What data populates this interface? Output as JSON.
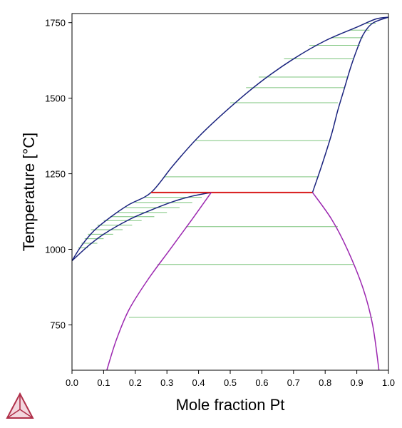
{
  "chart_data": {
    "type": "line",
    "title": "",
    "xlabel": "Mole fraction Pt",
    "ylabel": "Temperature [°C]",
    "xlim": [
      0,
      1
    ],
    "ylim": [
      600,
      1780
    ],
    "x_ticks": [
      "0.0",
      "0.1",
      "0.2",
      "0.3",
      "0.4",
      "0.5",
      "0.6",
      "0.7",
      "0.8",
      "0.9",
      "1.0"
    ],
    "y_ticks": [
      "750",
      "1000",
      "1250",
      "1500",
      "1750"
    ],
    "grid": false,
    "legend": "none",
    "series": [
      {
        "color": "#1a237e",
        "points": [
          [
            0,
            962
          ],
          [
            0.03,
            1012
          ],
          [
            0.07,
            1062
          ],
          [
            0.12,
            1105
          ],
          [
            0.18,
            1148
          ],
          [
            0.25,
            1188
          ],
          [
            0.32,
            1278
          ],
          [
            0.4,
            1372
          ],
          [
            0.5,
            1470
          ],
          [
            0.6,
            1557
          ],
          [
            0.7,
            1630
          ],
          [
            0.8,
            1690
          ],
          [
            0.9,
            1735
          ],
          [
            0.96,
            1762
          ],
          [
            1.0,
            1768
          ]
        ]
      },
      {
        "color": "#1a237e",
        "points": [
          [
            0,
            962
          ],
          [
            0.05,
            1010
          ],
          [
            0.1,
            1050
          ],
          [
            0.18,
            1098
          ],
          [
            0.25,
            1130
          ],
          [
            0.32,
            1158
          ],
          [
            0.38,
            1176
          ],
          [
            0.44,
            1188
          ]
        ]
      },
      {
        "color": "#1a237e",
        "points": [
          [
            0.76,
            1188
          ],
          [
            0.79,
            1280
          ],
          [
            0.82,
            1380
          ],
          [
            0.84,
            1460
          ],
          [
            0.86,
            1530
          ],
          [
            0.88,
            1600
          ],
          [
            0.9,
            1660
          ],
          [
            0.92,
            1710
          ],
          [
            0.95,
            1748
          ],
          [
            1.0,
            1768
          ]
        ]
      },
      {
        "color": "#d81b1b",
        "points": [
          [
            0.25,
            1188
          ],
          [
            0.76,
            1188
          ]
        ]
      },
      {
        "color": "#9c27b0",
        "points": [
          [
            0.44,
            1188
          ],
          [
            0.38,
            1100
          ],
          [
            0.31,
            1000
          ],
          [
            0.24,
            900
          ],
          [
            0.18,
            800
          ],
          [
            0.14,
            700
          ],
          [
            0.11,
            600
          ]
        ]
      },
      {
        "color": "#9c27b0",
        "points": [
          [
            0.76,
            1188
          ],
          [
            0.82,
            1100
          ],
          [
            0.87,
            1000
          ],
          [
            0.92,
            870
          ],
          [
            0.95,
            750
          ],
          [
            0.97,
            600
          ]
        ]
      }
    ],
    "tie_lines": {
      "color": "#7cc47c",
      "segments": [
        [
          [
            0.02,
            1005
          ],
          [
            0.05,
            1005
          ]
        ],
        [
          [
            0.03,
            1020
          ],
          [
            0.08,
            1020
          ]
        ],
        [
          [
            0.04,
            1035
          ],
          [
            0.1,
            1035
          ]
        ],
        [
          [
            0.05,
            1050
          ],
          [
            0.13,
            1050
          ]
        ],
        [
          [
            0.06,
            1065
          ],
          [
            0.16,
            1065
          ]
        ],
        [
          [
            0.08,
            1080
          ],
          [
            0.19,
            1080
          ]
        ],
        [
          [
            0.1,
            1095
          ],
          [
            0.22,
            1095
          ]
        ],
        [
          [
            0.12,
            1108
          ],
          [
            0.26,
            1108
          ]
        ],
        [
          [
            0.14,
            1122
          ],
          [
            0.3,
            1122
          ]
        ],
        [
          [
            0.17,
            1138
          ],
          [
            0.34,
            1138
          ]
        ],
        [
          [
            0.2,
            1155
          ],
          [
            0.38,
            1155
          ]
        ],
        [
          [
            0.23,
            1172
          ],
          [
            0.41,
            1172
          ]
        ],
        [
          [
            0.26,
            1188
          ],
          [
            0.44,
            1188
          ]
        ],
        [
          [
            0.29,
            1240
          ],
          [
            0.78,
            1240
          ]
        ],
        [
          [
            0.39,
            1360
          ],
          [
            0.81,
            1360
          ]
        ],
        [
          [
            0.5,
            1485
          ],
          [
            0.84,
            1485
          ]
        ],
        [
          [
            0.55,
            1535
          ],
          [
            0.86,
            1535
          ]
        ],
        [
          [
            0.59,
            1570
          ],
          [
            0.87,
            1570
          ]
        ],
        [
          [
            0.67,
            1630
          ],
          [
            0.89,
            1630
          ]
        ],
        [
          [
            0.75,
            1675
          ],
          [
            0.91,
            1675
          ]
        ],
        [
          [
            0.82,
            1700
          ],
          [
            0.92,
            1700
          ]
        ],
        [
          [
            0.88,
            1725
          ],
          [
            0.94,
            1725
          ]
        ],
        [
          [
            0.93,
            1748
          ],
          [
            0.96,
            1748
          ]
        ],
        [
          [
            0.36,
            1075
          ],
          [
            0.84,
            1075
          ]
        ],
        [
          [
            0.27,
            950
          ],
          [
            0.89,
            950
          ]
        ],
        [
          [
            0.18,
            775
          ],
          [
            0.95,
            775
          ]
        ]
      ]
    }
  },
  "logo": {
    "name": "thermo-calc-logo"
  }
}
